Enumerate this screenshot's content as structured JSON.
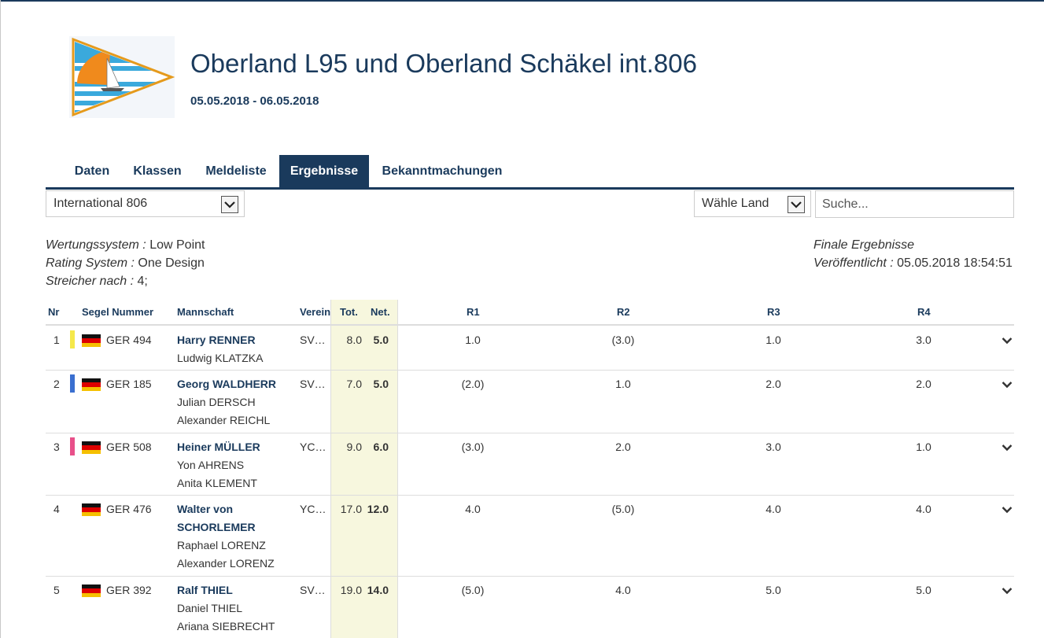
{
  "event": {
    "title": "Oberland L95 und Oberland Schäkel int.806",
    "dates": "05.05.2018 - 06.05.2018"
  },
  "tabs": [
    {
      "label": "Daten",
      "active": false
    },
    {
      "label": "Klassen",
      "active": false
    },
    {
      "label": "Meldeliste",
      "active": false
    },
    {
      "label": "Ergebnisse",
      "active": true
    },
    {
      "label": "Bekanntmachungen",
      "active": false
    }
  ],
  "filters": {
    "class_select": "International 806",
    "country_select": "Wähle Land",
    "search_placeholder": "Suche..."
  },
  "info": {
    "scoring_label": "Wertungssystem :",
    "scoring_value": "Low Point",
    "rating_label": "Rating System :",
    "rating_value": "One Design",
    "discard_label": "Streicher nach :",
    "discard_value": "4;",
    "status": "Finale Ergebnisse",
    "published_label": "Veröffentlicht :",
    "published_value": "05.05.2018 18:54:51"
  },
  "table": {
    "headers": {
      "nr": "Nr",
      "sail": "Segel Nummer",
      "crew": "Mannschaft",
      "club": "Verein",
      "total": "Tot.",
      "net": "Net.",
      "r1": "R1",
      "r2": "R2",
      "r3": "R3",
      "r4": "R4"
    },
    "rows": [
      {
        "nr": "1",
        "marker": "#f5e84a",
        "sail": "GER 494",
        "skipper": "Harry RENNER",
        "skipper2": "",
        "crew": [
          "Ludwig KLATZKA"
        ],
        "club": "SV…",
        "total": "8.0",
        "net": "5.0",
        "r1": "1.0",
        "r2": "(3.0)",
        "r3": "1.0",
        "r4": "3.0"
      },
      {
        "nr": "2",
        "marker": "#3a6fd0",
        "sail": "GER 185",
        "skipper": "Georg WALDHERR",
        "skipper2": "",
        "crew": [
          "Julian DERSCH",
          "Alexander REICHL"
        ],
        "club": "SV…",
        "total": "7.0",
        "net": "5.0",
        "r1": "(2.0)",
        "r2": "1.0",
        "r3": "2.0",
        "r4": "2.0"
      },
      {
        "nr": "3",
        "marker": "#e8508a",
        "sail": "GER 508",
        "skipper": "Heiner MÜLLER",
        "skipper2": "",
        "crew": [
          "Yon AHRENS",
          "Anita KLEMENT"
        ],
        "club": "YC…",
        "total": "9.0",
        "net": "6.0",
        "r1": "(3.0)",
        "r2": "2.0",
        "r3": "3.0",
        "r4": "1.0"
      },
      {
        "nr": "4",
        "marker": "",
        "sail": "GER 476",
        "skipper": "Walter von",
        "skipper2": "SCHORLEMER",
        "crew": [
          "Raphael LORENZ",
          "Alexander LORENZ"
        ],
        "club": "YC…",
        "total": "17.0",
        "net": "12.0",
        "r1": "4.0",
        "r2": "(5.0)",
        "r3": "4.0",
        "r4": "4.0"
      },
      {
        "nr": "5",
        "marker": "",
        "sail": "GER 392",
        "skipper": "Ralf THIEL",
        "skipper2": "",
        "crew": [
          "Daniel THIEL",
          "Ariana SIEBRECHT"
        ],
        "club": "SV…",
        "total": "19.0",
        "net": "14.0",
        "r1": "(5.0)",
        "r2": "4.0",
        "r3": "5.0",
        "r4": "5.0"
      }
    ]
  }
}
